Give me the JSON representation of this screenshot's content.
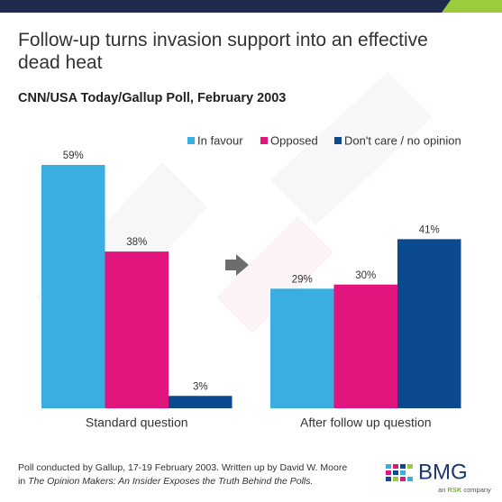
{
  "chart_data": {
    "type": "bar",
    "title": "Follow-up turns invasion support into an effective dead heat",
    "subtitle": "CNN/USA Today/Gallup Poll, February 2003",
    "categories": [
      "Standard question",
      "After follow up question"
    ],
    "series": [
      {
        "name": "In favour",
        "color": "#3aaee0",
        "values": [
          59,
          29
        ],
        "value_labels": [
          "59%",
          "29%"
        ]
      },
      {
        "name": "Opposed",
        "color": "#e2147d",
        "values": [
          38,
          30
        ],
        "value_labels": [
          "38%",
          "30%"
        ]
      },
      {
        "name": "Don't care  / no opinion",
        "color": "#0c4a90",
        "values": [
          3,
          41
        ],
        "value_labels": [
          "3%",
          "41%"
        ]
      }
    ],
    "legend": "top-right"
  },
  "footer": {
    "line1": "Poll conducted by Gallup, 17-19 February 2003. Written up by David W. Moore",
    "line2_prefix": "in",
    "line2_italic": "The Opinion Makers: An Insider Exposes the Truth Behind the Polls."
  },
  "logo": {
    "name": "BMG",
    "tagline_prefix": "an",
    "tagline_brand": "RSK",
    "tagline_suffix": "company"
  }
}
